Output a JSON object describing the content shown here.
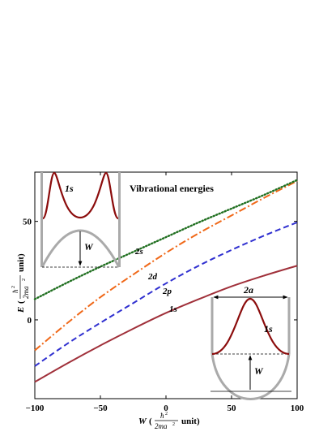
{
  "chart_data": {
    "type": "line",
    "title": "Vibrational energies",
    "xlabel": {
      "var": "W",
      "open": "(",
      "num": "ħ",
      "num_sup": "2",
      "den": "2ma",
      "den_sup": "2",
      "unit": "unit)"
    },
    "ylabel": {
      "var": "E",
      "open": "(",
      "num": "ħ",
      "num_sup": "2",
      "den": "2ma",
      "den_sup": "2",
      "unit": "unit)"
    },
    "xlim": [
      -100,
      100
    ],
    "ylim": [
      -40,
      75
    ],
    "xticks": [
      -100,
      -50,
      0,
      50,
      100
    ],
    "xtick_labels": [
      "−100",
      "−50",
      "0",
      "50",
      "100"
    ],
    "yticks": [
      0,
      50
    ],
    "ytick_labels": [
      "0",
      "50"
    ],
    "grid": false,
    "x": [
      -100,
      -75,
      -50,
      -25,
      0,
      25,
      50,
      75,
      100
    ],
    "series": [
      {
        "name": "1s",
        "color": "#a0303a",
        "dash": "solid",
        "values": [
          -31.5,
          -22,
          -13,
          -4.5,
          3.5,
          10.5,
          17,
          22.5,
          27.5
        ]
      },
      {
        "name": "2p",
        "color": "#3030d0",
        "dash": "dashed",
        "values": [
          -23.5,
          -12,
          -1.5,
          8.5,
          18.5,
          27.5,
          35.5,
          42.8,
          49.5
        ]
      },
      {
        "name": "2d",
        "color": "#f06818",
        "dash": "dashdot",
        "values": [
          -15.5,
          -1.5,
          11.5,
          23,
          34,
          44,
          53,
          62,
          70.5
        ]
      },
      {
        "name": "2s",
        "color": "#206f20",
        "dash": "dotted",
        "values": [
          10.5,
          19,
          27,
          34.5,
          42,
          49.5,
          56.5,
          63.5,
          71
        ]
      }
    ],
    "insets": [
      {
        "which": "top-left",
        "state_label": "1s",
        "barrier_label": "W"
      },
      {
        "which": "bottom-right",
        "state_label": "1s",
        "barrier_label": "W",
        "width_label": "2a"
      }
    ]
  }
}
